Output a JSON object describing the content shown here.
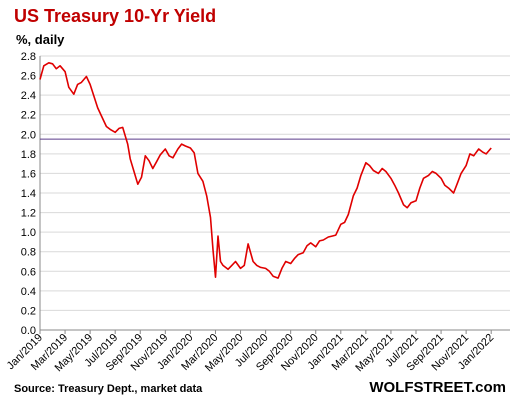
{
  "chart_data": {
    "type": "line",
    "title": "US Treasury 10-Yr Yield",
    "ylabel": "%, daily",
    "source": "Source: Treasury Dept., market data",
    "brand": "WOLFSTREET.com",
    "ylim": [
      0,
      2.8
    ],
    "yticks": [
      0.0,
      0.2,
      0.4,
      0.6,
      0.8,
      1.0,
      1.2,
      1.4,
      1.6,
      1.8,
      2.0,
      2.2,
      2.4,
      2.6,
      2.8
    ],
    "ytick_labels": [
      "0.0",
      "0.2",
      "0.4",
      "0.6",
      "0.8",
      "1.0",
      "1.2",
      "1.4",
      "1.6",
      "1.8",
      "2.0",
      "2.2",
      "2.4",
      "2.6",
      "2.8"
    ],
    "xlim": [
      0,
      37.5
    ],
    "xticks": [
      0,
      2,
      4,
      6,
      8,
      10,
      12,
      14,
      16,
      18,
      20,
      22,
      24,
      26,
      28,
      30,
      32,
      34,
      36
    ],
    "xtick_labels": [
      "Jan/2019",
      "Mar/2019",
      "May/2019",
      "Jul/2019",
      "Sep/2019",
      "Nov/2019",
      "Jan/2020",
      "Mar/2020",
      "May/2020",
      "Jul/2020",
      "Sep/2020",
      "Nov/2020",
      "Jan/2021",
      "Mar/2021",
      "May/2021",
      "Jul/2021",
      "Sep/2021",
      "Nov/2021",
      "Jan/2022"
    ],
    "x_unit": "months since Jan 2019",
    "grid": "horizontal",
    "reference_line": {
      "y": 1.95,
      "color": "#5a3a8a"
    },
    "series": [
      {
        "name": "US Treasury 10-Yr Yield",
        "color": "#e00000",
        "points": [
          [
            0.0,
            2.56
          ],
          [
            0.3,
            2.7
          ],
          [
            0.7,
            2.73
          ],
          [
            1.0,
            2.72
          ],
          [
            1.3,
            2.67
          ],
          [
            1.6,
            2.7
          ],
          [
            2.0,
            2.64
          ],
          [
            2.3,
            2.48
          ],
          [
            2.7,
            2.41
          ],
          [
            3.0,
            2.51
          ],
          [
            3.3,
            2.53
          ],
          [
            3.7,
            2.59
          ],
          [
            4.0,
            2.51
          ],
          [
            4.3,
            2.39
          ],
          [
            4.6,
            2.27
          ],
          [
            5.0,
            2.16
          ],
          [
            5.3,
            2.08
          ],
          [
            5.6,
            2.05
          ],
          [
            6.0,
            2.02
          ],
          [
            6.3,
            2.06
          ],
          [
            6.6,
            2.07
          ],
          [
            7.0,
            1.9
          ],
          [
            7.2,
            1.75
          ],
          [
            7.5,
            1.62
          ],
          [
            7.8,
            1.49
          ],
          [
            8.1,
            1.56
          ],
          [
            8.4,
            1.78
          ],
          [
            8.7,
            1.73
          ],
          [
            9.0,
            1.65
          ],
          [
            9.3,
            1.72
          ],
          [
            9.6,
            1.79
          ],
          [
            10.0,
            1.85
          ],
          [
            10.3,
            1.78
          ],
          [
            10.6,
            1.76
          ],
          [
            11.0,
            1.85
          ],
          [
            11.3,
            1.9
          ],
          [
            11.6,
            1.88
          ],
          [
            12.0,
            1.86
          ],
          [
            12.3,
            1.81
          ],
          [
            12.6,
            1.6
          ],
          [
            13.0,
            1.52
          ],
          [
            13.3,
            1.37
          ],
          [
            13.6,
            1.15
          ],
          [
            13.8,
            0.82
          ],
          [
            14.0,
            0.54
          ],
          [
            14.2,
            0.96
          ],
          [
            14.4,
            0.7
          ],
          [
            14.6,
            0.66
          ],
          [
            15.0,
            0.62
          ],
          [
            15.3,
            0.66
          ],
          [
            15.6,
            0.7
          ],
          [
            16.0,
            0.63
          ],
          [
            16.3,
            0.66
          ],
          [
            16.6,
            0.88
          ],
          [
            17.0,
            0.7
          ],
          [
            17.3,
            0.66
          ],
          [
            17.6,
            0.64
          ],
          [
            18.0,
            0.63
          ],
          [
            18.3,
            0.6
          ],
          [
            18.6,
            0.55
          ],
          [
            19.0,
            0.53
          ],
          [
            19.3,
            0.63
          ],
          [
            19.6,
            0.7
          ],
          [
            20.0,
            0.68
          ],
          [
            20.3,
            0.73
          ],
          [
            20.6,
            0.77
          ],
          [
            21.0,
            0.79
          ],
          [
            21.3,
            0.86
          ],
          [
            21.6,
            0.89
          ],
          [
            22.0,
            0.85
          ],
          [
            22.3,
            0.91
          ],
          [
            22.6,
            0.92
          ],
          [
            23.0,
            0.95
          ],
          [
            23.3,
            0.96
          ],
          [
            23.6,
            0.97
          ],
          [
            24.0,
            1.08
          ],
          [
            24.3,
            1.1
          ],
          [
            24.6,
            1.18
          ],
          [
            25.0,
            1.37
          ],
          [
            25.3,
            1.45
          ],
          [
            25.6,
            1.58
          ],
          [
            26.0,
            1.71
          ],
          [
            26.3,
            1.68
          ],
          [
            26.6,
            1.63
          ],
          [
            27.0,
            1.6
          ],
          [
            27.3,
            1.65
          ],
          [
            27.6,
            1.62
          ],
          [
            28.0,
            1.55
          ],
          [
            28.3,
            1.48
          ],
          [
            28.6,
            1.4
          ],
          [
            29.0,
            1.28
          ],
          [
            29.3,
            1.25
          ],
          [
            29.6,
            1.3
          ],
          [
            30.0,
            1.32
          ],
          [
            30.3,
            1.45
          ],
          [
            30.6,
            1.55
          ],
          [
            31.0,
            1.58
          ],
          [
            31.3,
            1.62
          ],
          [
            31.6,
            1.6
          ],
          [
            32.0,
            1.55
          ],
          [
            32.3,
            1.48
          ],
          [
            32.6,
            1.45
          ],
          [
            33.0,
            1.4
          ],
          [
            33.3,
            1.5
          ],
          [
            33.6,
            1.6
          ],
          [
            34.0,
            1.68
          ],
          [
            34.3,
            1.8
          ],
          [
            34.6,
            1.78
          ],
          [
            35.0,
            1.85
          ],
          [
            35.3,
            1.82
          ],
          [
            35.6,
            1.8
          ],
          [
            36.0,
            1.86
          ]
        ]
      }
    ]
  }
}
